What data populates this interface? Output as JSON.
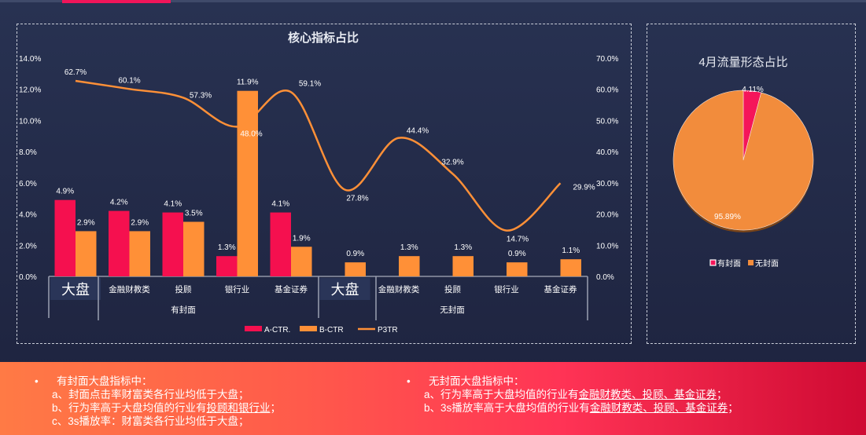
{
  "colors": {
    "a_ctr": "#f5104f",
    "b_ctr": "#ff9037",
    "p3tr": "#ff9037",
    "pie_cover": "#f5155a",
    "pie_nocover": "#f28c3c"
  },
  "chart_data": [
    {
      "type": "bar+line",
      "title": "核心指标占比",
      "group_labels": [
        "有封面",
        "无封面"
      ],
      "categories": [
        "大盘",
        "金融财教类",
        "投顾",
        "银行业",
        "基金证券",
        "大盘",
        "金融财教类",
        "投顾",
        "银行业",
        "基金证券"
      ],
      "left_axis": {
        "ylim": [
          0,
          14
        ],
        "ticks": [
          "0.0%",
          "2.0%",
          "4.0%",
          "6.0%",
          "8.0%",
          "10.0%",
          "12.0%",
          "14.0%"
        ]
      },
      "right_axis": {
        "ylim": [
          0,
          70
        ],
        "ticks": [
          "0.0%",
          "10.0%",
          "20.0%",
          "30.0%",
          "40.0%",
          "50.0%",
          "60.0%",
          "70.0%"
        ]
      },
      "series": [
        {
          "name": "A-CTR.",
          "type": "bar",
          "axis": "left",
          "values": [
            4.9,
            4.2,
            4.1,
            1.3,
            4.1,
            null,
            null,
            null,
            null,
            null
          ],
          "labels": [
            "4.9%",
            "4.2%",
            "4.1%",
            "1.3%",
            "4.1%",
            "",
            "",
            "",
            "",
            ""
          ]
        },
        {
          "name": "B-CTR",
          "type": "bar",
          "axis": "left",
          "values": [
            2.9,
            2.9,
            3.5,
            11.9,
            1.9,
            0.9,
            1.3,
            1.3,
            0.9,
            1.1
          ],
          "labels": [
            "2.9%",
            "2.9%",
            "3.5%",
            "11.9%",
            "1.9%",
            "0.9%",
            "1.3%",
            "1.3%",
            "0.9%",
            "1.1%"
          ]
        },
        {
          "name": "P3TR",
          "type": "line",
          "axis": "right",
          "values": [
            62.7,
            60.1,
            57.3,
            48.0,
            59.1,
            27.8,
            44.4,
            32.9,
            14.7,
            29.9
          ],
          "labels": [
            "62.7%",
            "60.1%",
            "57.3%",
            "48.0%",
            "59.1%",
            "27.8%",
            "44.4%",
            "32.9%",
            "14.7%",
            "29.9%"
          ]
        }
      ],
      "legend": "bottom"
    },
    {
      "type": "pie",
      "title": "4月流量形态占比",
      "slices": [
        {
          "name": "有封面",
          "value": 4.11,
          "label": "4.11%"
        },
        {
          "name": "无封面",
          "value": 95.89,
          "label": "95.89%"
        }
      ],
      "legend": "bottom"
    }
  ],
  "summary": {
    "left": {
      "heading": "有封面大盘指标中：",
      "items": [
        {
          "text": "a、封面点击率财富类各行业均低于大盘；",
          "u": ""
        },
        {
          "text": "b、行为率高于大盘均值的行业有",
          "u": "投顾和银行业",
          "tail": "；"
        },
        {
          "text": "c、3s播放率：财富类各行业均低于大盘；",
          "u": ""
        }
      ]
    },
    "right": {
      "heading": "无封面大盘指标中：",
      "items": [
        {
          "text": "a、行为率高于大盘均值的行业有",
          "u": "金融财教类、投顾、基金证券",
          "tail": "；"
        },
        {
          "text": "b、3s播放率高于大盘均值的行业有",
          "u": "金融财教类、投顾、基金证券",
          "tail": "；"
        }
      ]
    }
  }
}
